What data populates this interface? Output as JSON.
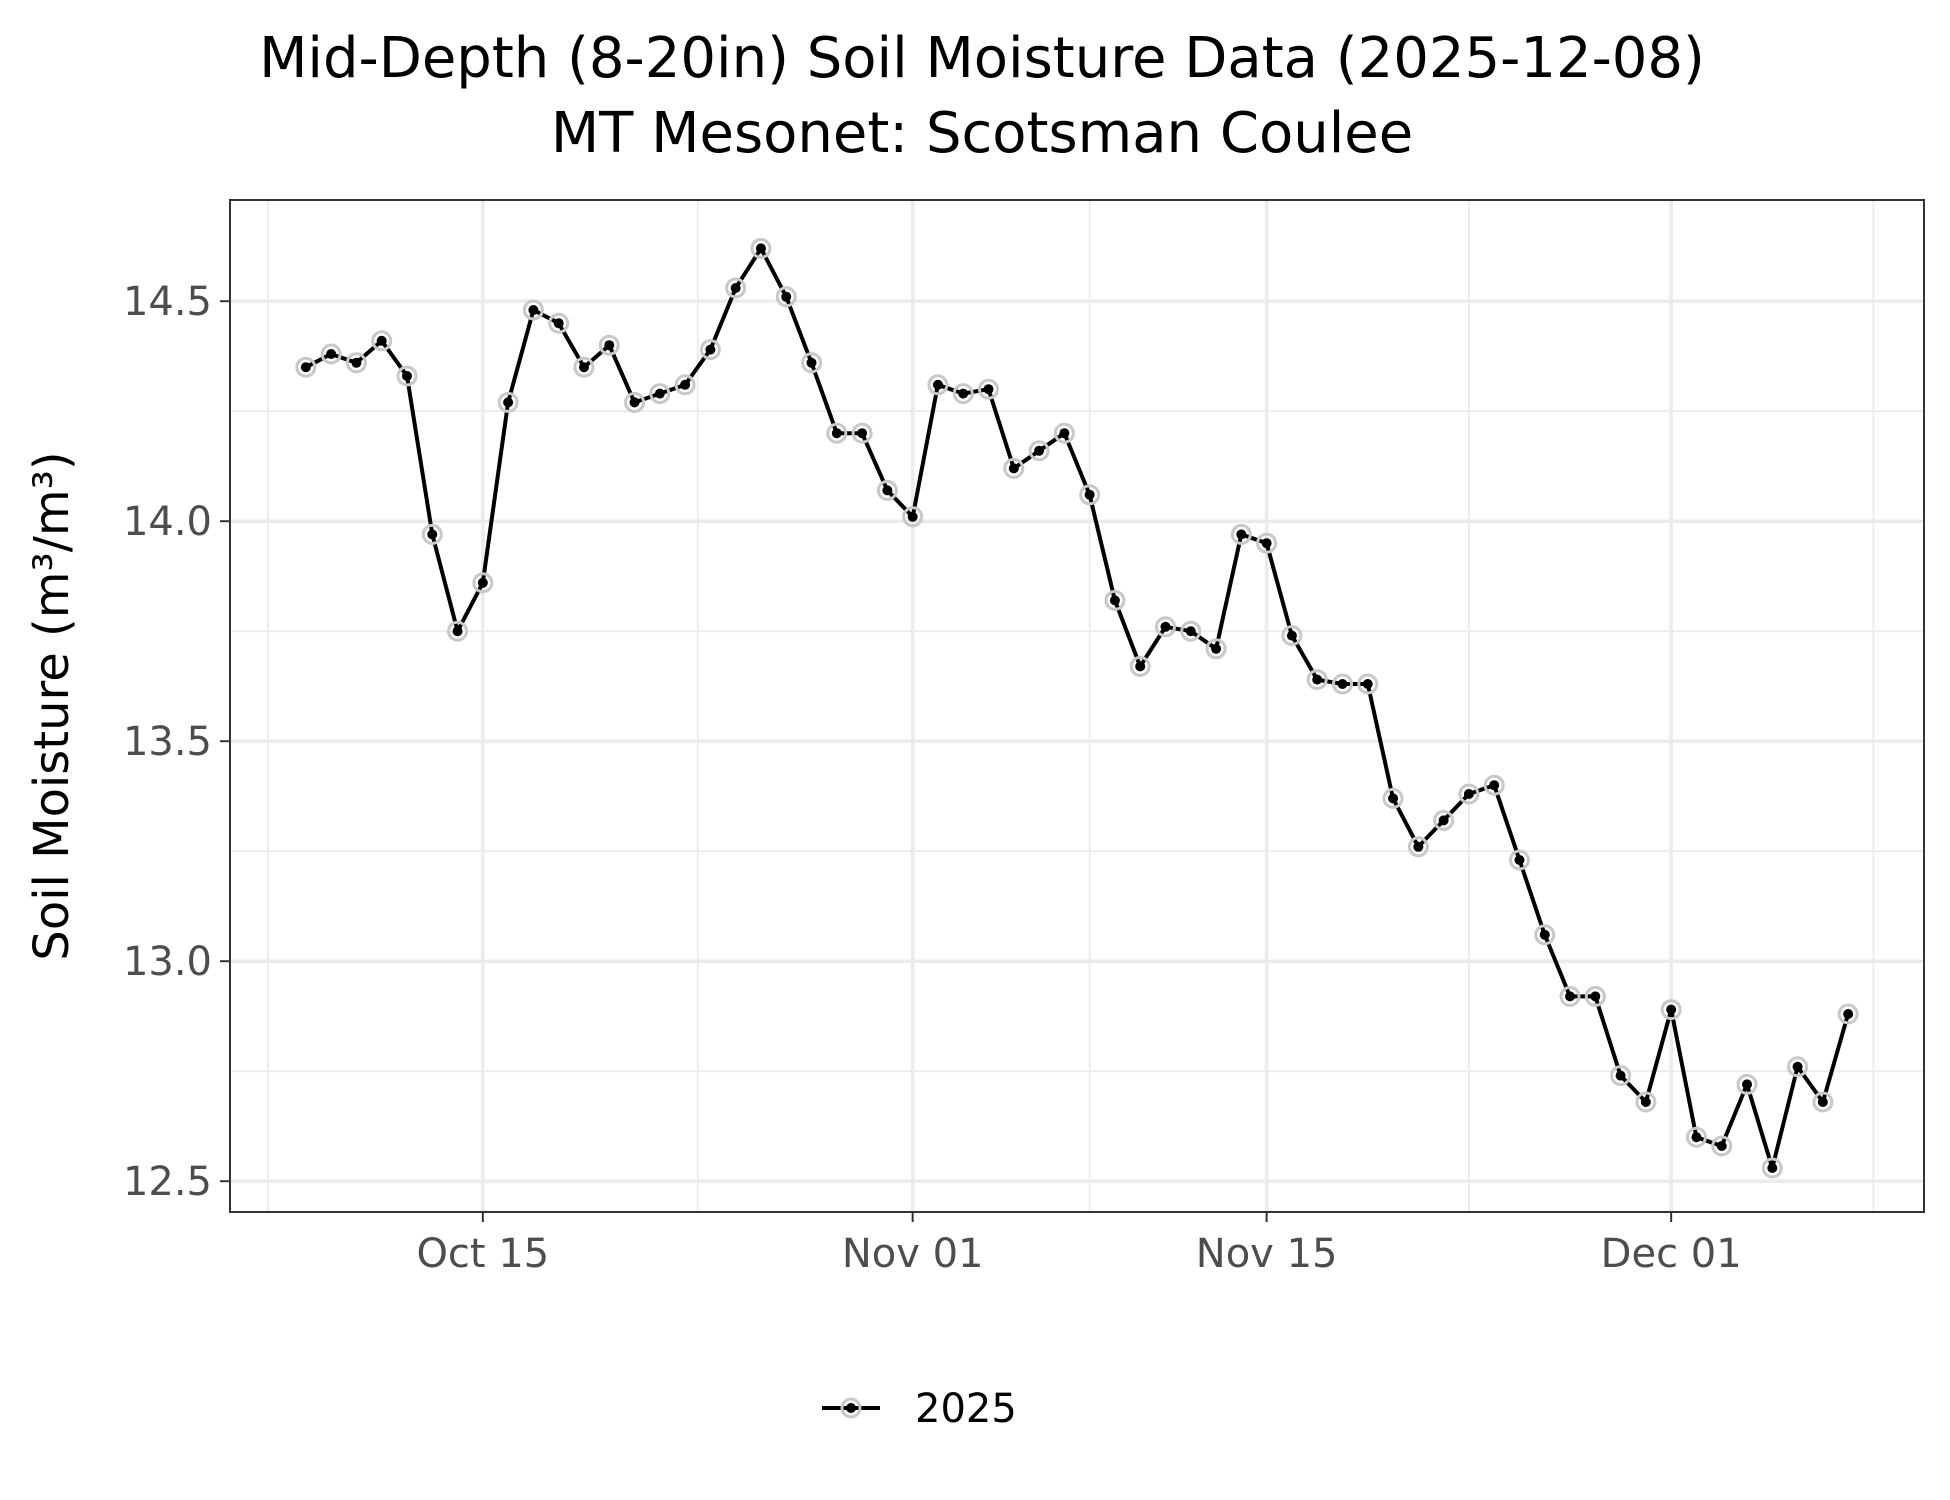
{
  "chart_data": {
    "type": "line",
    "title": "Mid-Depth (8-20in) Soil Moisture Data (2025-12-08)",
    "subtitle": "MT Mesonet: Scotsman Coulee",
    "xlabel": "",
    "ylabel": "Soil Moisture (m³/m³)",
    "x_ticks": [
      {
        "date": "2025-10-15",
        "label": "Oct 15"
      },
      {
        "date": "2025-11-01",
        "label": "Nov 01"
      },
      {
        "date": "2025-11-15",
        "label": "Nov 15"
      },
      {
        "date": "2025-12-01",
        "label": "Dec 01"
      }
    ],
    "y_ticks": [
      12.5,
      13.0,
      13.5,
      14.0,
      14.5
    ],
    "xlim": [
      "2025-10-05",
      "2025-12-11"
    ],
    "ylim": [
      12.43,
      14.73
    ],
    "grid": true,
    "legend_position": "bottom",
    "series": [
      {
        "name": "2025",
        "color": "#000000",
        "point_halo_color": "#c8c8c8",
        "x": [
          "2025-10-08",
          "2025-10-09",
          "2025-10-10",
          "2025-10-11",
          "2025-10-12",
          "2025-10-13",
          "2025-10-14",
          "2025-10-15",
          "2025-10-16",
          "2025-10-17",
          "2025-10-18",
          "2025-10-19",
          "2025-10-20",
          "2025-10-21",
          "2025-10-22",
          "2025-10-23",
          "2025-10-24",
          "2025-10-25",
          "2025-10-26",
          "2025-10-27",
          "2025-10-28",
          "2025-10-29",
          "2025-10-30",
          "2025-10-31",
          "2025-11-01",
          "2025-11-02",
          "2025-11-03",
          "2025-11-04",
          "2025-11-05",
          "2025-11-06",
          "2025-11-07",
          "2025-11-08",
          "2025-11-09",
          "2025-11-10",
          "2025-11-11",
          "2025-11-12",
          "2025-11-13",
          "2025-11-14",
          "2025-11-15",
          "2025-11-16",
          "2025-11-17",
          "2025-11-18",
          "2025-11-19",
          "2025-11-20",
          "2025-11-21",
          "2025-11-22",
          "2025-11-23",
          "2025-11-24",
          "2025-11-25",
          "2025-11-26",
          "2025-11-27",
          "2025-11-28",
          "2025-11-29",
          "2025-11-30",
          "2025-12-01",
          "2025-12-02",
          "2025-12-03",
          "2025-12-04",
          "2025-12-05",
          "2025-12-06",
          "2025-12-07",
          "2025-12-08"
        ],
        "values": [
          14.35,
          14.38,
          14.36,
          14.41,
          14.33,
          13.97,
          13.75,
          13.86,
          14.27,
          14.48,
          14.45,
          14.35,
          14.4,
          14.27,
          14.29,
          14.31,
          14.39,
          14.53,
          14.62,
          14.51,
          14.36,
          14.2,
          14.2,
          14.07,
          14.01,
          14.31,
          14.29,
          14.3,
          14.12,
          14.16,
          14.2,
          14.06,
          13.82,
          13.67,
          13.76,
          13.75,
          13.71,
          13.97,
          13.95,
          13.74,
          13.64,
          13.63,
          13.63,
          13.37,
          13.26,
          13.32,
          13.38,
          13.4,
          13.23,
          13.06,
          12.92,
          12.92,
          12.74,
          12.68,
          12.89,
          12.6,
          12.58,
          12.72,
          12.53,
          12.76,
          12.68,
          12.88
        ]
      }
    ]
  }
}
